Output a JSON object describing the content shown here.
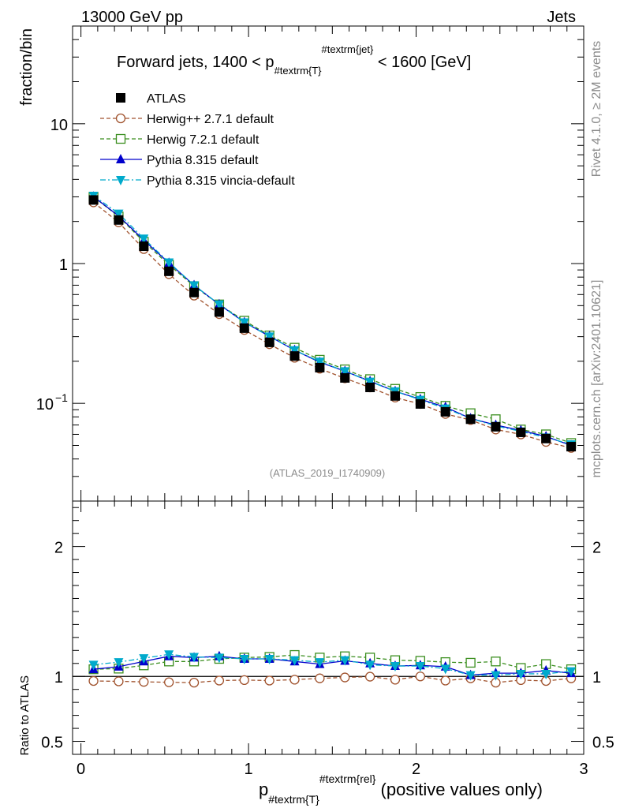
{
  "header": {
    "energy": "13000 GeV pp",
    "category": "Jets"
  },
  "side": {
    "rivet": "Rivet 4.1.0, ≥ 2M events",
    "mcplots": "mcplots.cern.ch [arXiv:2401.10621]"
  },
  "chart_data": {
    "type": "line",
    "title": "Forward jets, 1400 < p",
    "title_sub": "#textrm{T}",
    "title_sup": "#textrm{jet}",
    "title_tail": " < 1600 [GeV]",
    "analysis": "(ATLAS_2019_I1740909)",
    "ylabel": "fraction/bin",
    "ratio_ylabel": "Ratio to ATLAS",
    "xlabel_main": "p",
    "xlabel_sub": "#textrm{T}",
    "xlabel_sup": "#textrm{rel}",
    "xlabel_tail": " (positive values only)",
    "xlim": [
      -0.05,
      3.0
    ],
    "ylim": [
      0.02,
      50
    ],
    "yscale": "log",
    "ratio_ylim": [
      0.4,
      2.35
    ],
    "xticks": [
      {
        "v": 0,
        "label": "0"
      },
      {
        "v": 1,
        "label": "1"
      },
      {
        "v": 2,
        "label": "2"
      },
      {
        "v": 3,
        "label": "3"
      }
    ],
    "yticks": [
      {
        "v": 10,
        "label": "10"
      },
      {
        "v": 1,
        "label": "1"
      },
      {
        "v": 0.1,
        "label": "10",
        "sup": "−1"
      }
    ],
    "ratio_yticks": [
      {
        "v": 2,
        "label": "2"
      },
      {
        "v": 1,
        "label": "1"
      },
      {
        "v": 0.5,
        "label": "0.5"
      }
    ],
    "x": [
      0.075,
      0.225,
      0.375,
      0.525,
      0.675,
      0.825,
      0.975,
      1.125,
      1.275,
      1.425,
      1.575,
      1.725,
      1.875,
      2.025,
      2.175,
      2.325,
      2.475,
      2.625,
      2.775,
      2.925
    ],
    "series": [
      {
        "name": "ATLAS",
        "color": "#000000",
        "marker": "square-filled",
        "line": "none",
        "values": [
          2.85,
          2.05,
          1.33,
          0.88,
          0.62,
          0.45,
          0.345,
          0.273,
          0.218,
          0.18,
          0.152,
          0.13,
          0.113,
          0.099,
          0.087,
          0.077,
          0.068,
          0.062,
          0.056,
          0.049
        ]
      },
      {
        "name": "Herwig++ 2.7.1 default",
        "color": "#a0522d",
        "marker": "circle-open",
        "line": "dashed",
        "values": [
          2.74,
          1.97,
          1.27,
          0.84,
          0.59,
          0.435,
          0.335,
          0.265,
          0.212,
          0.177,
          0.151,
          0.13,
          0.11,
          0.099,
          0.084,
          0.076,
          0.065,
          0.06,
          0.053,
          0.048
        ]
      },
      {
        "name": "Herwig 7.2.1 default",
        "color": "#3a8e1e",
        "marker": "square-open",
        "line": "dashed",
        "values": [
          3.0,
          2.17,
          1.43,
          0.98,
          0.69,
          0.51,
          0.39,
          0.306,
          0.25,
          0.205,
          0.175,
          0.149,
          0.127,
          0.111,
          0.096,
          0.085,
          0.077,
          0.065,
          0.06,
          0.052
        ]
      },
      {
        "name": "Pythia 8.315 default",
        "color": "#0000cc",
        "marker": "triangle-up",
        "line": "solid",
        "values": [
          3.01,
          2.19,
          1.47,
          1.01,
          0.7,
          0.51,
          0.38,
          0.302,
          0.24,
          0.197,
          0.17,
          0.144,
          0.122,
          0.107,
          0.094,
          0.078,
          0.07,
          0.064,
          0.058,
          0.05
        ]
      },
      {
        "name": "Pythia 8.315 vincia-default",
        "color": "#00aacc",
        "marker": "triangle-down",
        "line": "dashdot",
        "values": [
          3.06,
          2.28,
          1.51,
          1.02,
          0.7,
          0.51,
          0.38,
          0.301,
          0.24,
          0.199,
          0.17,
          0.143,
          0.122,
          0.106,
          0.092,
          0.078,
          0.069,
          0.063,
          0.057,
          0.051
        ]
      }
    ],
    "ratio_series": [
      {
        "name": "Herwig++ 2.7.1 default",
        "values": [
          0.965,
          0.962,
          0.958,
          0.955,
          0.952,
          0.968,
          0.972,
          0.968,
          0.975,
          0.985,
          0.992,
          0.998,
          0.975,
          1.0,
          0.968,
          0.985,
          0.952,
          0.972,
          0.965,
          0.985
        ]
      },
      {
        "name": "Herwig 7.2.1 default",
        "values": [
          1.055,
          1.06,
          1.085,
          1.115,
          1.115,
          1.135,
          1.145,
          1.15,
          1.165,
          1.145,
          1.155,
          1.145,
          1.125,
          1.12,
          1.11,
          1.105,
          1.115,
          1.065,
          1.095,
          1.055
        ]
      },
      {
        "name": "Pythia 8.315 default",
        "values": [
          1.055,
          1.075,
          1.115,
          1.155,
          1.145,
          1.155,
          1.135,
          1.135,
          1.115,
          1.095,
          1.12,
          1.1,
          1.08,
          1.085,
          1.075,
          1.01,
          1.025,
          1.025,
          1.045,
          1.025
        ]
      },
      {
        "name": "Pythia 8.315 vincia-default",
        "values": [
          1.09,
          1.11,
          1.14,
          1.17,
          1.15,
          1.145,
          1.135,
          1.135,
          1.125,
          1.11,
          1.125,
          1.09,
          1.08,
          1.08,
          1.06,
          1.01,
          1.01,
          1.02,
          1.02,
          1.04
        ]
      }
    ]
  }
}
